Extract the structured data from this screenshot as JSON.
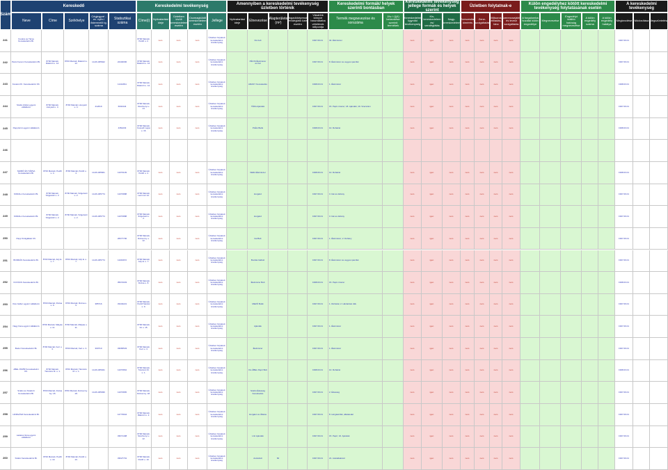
{
  "colors": {
    "navy": "#1e4272",
    "teal": "#2c7a6a",
    "darkgreen": "#1f6b45",
    "black": "#1a1a1a",
    "maroon": "#7a1c1c",
    "green": "#2c8a4a",
    "light_green": "#d9f7d2",
    "pink": "#f9d7d7",
    "white": "#ffffff"
  },
  "headers": {
    "szam": "Szám",
    "kereskedo": "Kereskedő",
    "neve": "Neve",
    "cime": "Címe",
    "szekhelye": "Székhelye",
    "cegjegyzek": "Cégjegyzé - ev. nyilv./ őstermelői ig. száma",
    "statisztikai": "Statisztikai száma",
    "kereskedelmi_tevekenyseg": "Kereskedelmi tevékenység",
    "cime2": "Címe(i)",
    "nyitvatartasi_cim": "Nyitvatartási ideje",
    "tevekenyseg_kezdete": "Üzletben kívüli kereskedelem esetén",
    "tevekenyseg_mozgo": "Csomagküldő kereskedelem esetén",
    "jellege": "Jellege",
    "amennyiben": "Amennyiben a kereskedelmi tevékenység üzletben történik",
    "nyitvatartasi_ideje": "Nyitvatartási ideje",
    "elnevezese": "Elnevezése",
    "alapterulete": "Alapterülete (m²)",
    "befogadokepesseg": "Befogadóképessége vendéglátó üzlet esetén",
    "vasarlok": "Vásárlók könyve használatba vételének időpontja",
    "formak": "Kereskedelmi formák/ helyek szerinti bontásban",
    "termek": "Termék megnevezése és sorszáma",
    "jov": "Jöv. t.§(4) bekezdése szerinti termékek",
    "jellege_formak": "Kereskedelmi tevékenység jellege formák és helyek szerint",
    "kiskereskedelem": "Kereskedelmi ügynöki tevékenység",
    "kis_keresk": "Kis-kereskedelem és/ vendéglátás",
    "nagy": "Nagy-kereskedelem",
    "uzletben": "Üzletben folytatnak-e",
    "szeszesital": "Szeszesital kimérés",
    "zene": "Zene-szolgáltatás",
    "musor": "Műsoros előadás, tánc",
    "szerencse": "Szerencsejáték és tevezi szolgáltatás",
    "kulon": "Külön engedélyhez kötött kereskedelmi tevékenység folytatásának esetén",
    "engedely1": "A forgalomba hozatal külön engedélye",
    "engedely2": "Megnevezése",
    "engedely3": "Engedélyt kiállító hatóság megnevezése",
    "engedely4": "A külön engedély száma",
    "engedely5": "A külön engedély hatálya",
    "megszunes": "A kereskedelmi tevékenység",
    "megsz1": "Megkezdése",
    "megsz2": "Módosítása",
    "megsz3": "Megszüntetése"
  },
  "rows": [
    {
      "no": "241",
      "neve": "Kovács és Társa Kereskedelmi Bt.",
      "cime": "",
      "szekhely": "",
      "ceg": "",
      "stat": "",
      "uzlet_cim": "8700 Marcali, Petőfi u. 2.",
      "jellege": "Üzletben folytatott kereskedelmi tevékenység",
      "elnev": "Kis bolt",
      "alap": "",
      "datum": "1997.09.01",
      "termek": "32. Élelmiszer",
      "vals": [
        "nem",
        "igen",
        "nem"
      ],
      "flags": [
        "nem",
        "nem",
        "nem",
        "nem"
      ],
      "end": "1997.09.01"
    },
    {
      "no": "242",
      "neve": "Pécsi Ferenc Kereskedelmi Bt.",
      "cime": "8700 Marcali, Rákóczi u. 12.",
      "szekhely": "8700 Marcali, Rákóczi u. 12.",
      "ceg": "14-06-305622",
      "stat": "22440000",
      "uzlet_cim": "8700 Marcali, Rákóczi u. 12.",
      "jellege": "Üzletben folytatott kereskedelmi tevékenység",
      "elnev": "PÉCSI Élelmiszer és Ital",
      "alap": "",
      "datum": "1997.09.01",
      "termek": "8. Élelmiszer és vegyes iparcikk",
      "vals": [
        "nem",
        "igen",
        "nem"
      ],
      "flags": [
        "nem",
        "nem",
        "nem",
        "nem"
      ],
      "end": "1997.09.01"
    },
    {
      "no": "243",
      "neve": "Kovács Kft. Kereskedelmi Kft.",
      "cime": "",
      "szekhely": "",
      "ceg": "",
      "stat": "11412811",
      "uzlet_cim": "8700 Marcali, Rákóczi u. 12.",
      "jellege": "Üzletben folytatott kereskedelmi tevékenység",
      "elnev": "ARANY Kereskedés",
      "alap": "",
      "datum": "1998.03.01",
      "termek": "1. Élelmiszer",
      "vals": [
        "nem",
        "igen",
        "nem"
      ],
      "flags": [
        "nem",
        "nem",
        "nem",
        "nem"
      ],
      "end": "1998.03.01"
    },
    {
      "no": "244",
      "neve": "Szabó Zoltán egyéni vállalkozó",
      "cime": "8700 Marcali, Hunyadi u. 4.",
      "szekhely": "8700 Marcali, Hunyadi u. 4.",
      "ceg": "412619",
      "stat": "6634444",
      "uzlet_cim": "8700 Marcali, Széchenyi u. 14.",
      "jellege": "Üzletben folytatott kereskedelmi tevékenység",
      "elnev": "TÉKA Ajándék",
      "alap": "",
      "datum": "1997.09.01",
      "termek": "15. Papír-írószer; 18. Ajándék; 19. Szerszám",
      "vals": [
        "nem",
        "igen",
        "nem"
      ],
      "flags": [
        "nem",
        "nem",
        "nem",
        "nem"
      ],
      "end": "1997.09.01"
    },
    {
      "no": "245",
      "neve": "Papp Ernő egyéni vállalkozó",
      "cime": "",
      "szekhely": "",
      "ceg": "",
      "stat": "4352233",
      "uzlet_cim": "8700 Marcali, Kossuth Lajos u. 16.",
      "jellege": "Üzletben folytatott kereskedelmi tevékenység",
      "elnev": "PLÉH Butik",
      "alap": "",
      "datum": "1998.03.01",
      "termek": "10. Ruházat",
      "vals": [
        "nem",
        "igen",
        "nem"
      ],
      "flags": [
        "nem",
        "nem",
        "nem",
        "nem"
      ],
      "end": "1998.03.01"
    },
    {
      "no": "246",
      "neve": "",
      "cime": "",
      "szekhely": "",
      "ceg": "",
      "stat": "",
      "uzlet_cim": "",
      "jellege": "",
      "elnev": "",
      "alap": "",
      "datum": "",
      "termek": "",
      "vals": [
        "",
        "",
        ""
      ],
      "flags": [
        "",
        "",
        "",
        ""
      ],
      "end": ""
    },
    {
      "no": "247",
      "neve": "SZABÓ ÉS TÁRSA Kereskedelmi Bt.",
      "cime": "8700 Marcali, Petőfi u. 4.",
      "szekhely": "8700 Marcali, Petőfi u. 4.",
      "ceg": "14-06-305661",
      "stat": "11073139",
      "uzlet_cim": "8700 Marcali, Petőfi u. 4.",
      "jellege": "Üzletben folytatott kereskedelmi tevékenység",
      "elnev": "VERA Élelmiszer",
      "alap": "",
      "datum": "1998.06.01",
      "termek": "10. Ruházat",
      "vals": [
        "nem",
        "igen",
        "nem"
      ],
      "flags": [
        "nem",
        "nem",
        "nem",
        "nem"
      ],
      "end": "1998.03.01"
    },
    {
      "no": "248",
      "neve": "KORALL Kereskedelmi Bt.",
      "cime": "8700 Marcali, Szigetvári u. 2.",
      "szekhely": "8700 Marcali, Szigetvári u. 2.",
      "ceg": "14-06-305774",
      "stat": "11073688",
      "uzlet_cim": "8700 Marcali, Lenin tér 12.",
      "jellege": "Üzletben folytatott kereskedelmi tevékenység",
      "elnev": "Horgász",
      "alap": "",
      "datum": "1997.09.01",
      "termek": "3. Ital és dohány",
      "vals": [
        "nem",
        "igen",
        "nem"
      ],
      "flags": [
        "nem",
        "nem",
        "nem",
        "nem"
      ],
      "end": "1997.09.01"
    },
    {
      "no": "249",
      "neve": "KORALL Kereskedelmi Bt.",
      "cime": "8700 Marcali, Szigetvári u. 2.",
      "szekhely": "8700 Marcali, Szigetvári u. 2.",
      "ceg": "14-06-305774",
      "stat": "11073688",
      "uzlet_cim": "8700 Marcali, Szigetvári u. 2.",
      "jellege": "Üzletben folytatott kereskedelmi tevékenység",
      "elnev": "Horgász",
      "alap": "",
      "datum": "1997.09.01",
      "termek": "3. Ital és dohány",
      "vals": [
        "nem",
        "igen",
        "nem"
      ],
      "flags": [
        "nem",
        "nem",
        "nem",
        "nem"
      ],
      "end": "1997.09.01"
    },
    {
      "no": "250",
      "neve": "Papp Szolgáltató Kft.",
      "cime": "",
      "szekhely": "",
      "ceg": "",
      "stat": "26677700",
      "uzlet_cim": "8700 Marcali, Dózsa Gy. u. 12.",
      "jellege": "Üzletben folytatott kereskedelmi tevékenység",
      "elnev": "Ital Bolt",
      "alap": "",
      "datum": "1997.09.01",
      "termek": "1. Élelmiszer; 2. Dohány",
      "vals": [
        "nem",
        "igen",
        "nem"
      ],
      "flags": [
        "nem",
        "nem",
        "nem",
        "nem"
      ],
      "end": "1997.09.01"
    },
    {
      "no": "251",
      "neve": "BORDÁS Kereskedelmi Bt.",
      "cime": "8700 Marcali, Ady E. u. 7.",
      "szekhely": "8700 Marcali, Ady E. u. 7.",
      "ceg": "14-06-305774",
      "stat": "11043972",
      "uzlet_cim": "8700 Marcali, Ady E. u. 7.",
      "jellege": "Üzletben folytatott kereskedelmi tevékenység",
      "elnev": "Bordás Italbolt",
      "alap": "",
      "datum": "1997.09.01",
      "termek": "8. Élelmiszer és vegyes iparcikk",
      "vals": [
        "nem",
        "igen",
        "nem"
      ],
      "flags": [
        "nem",
        "nem",
        "nem",
        "nem"
      ],
      "end": "1997.09.01"
    },
    {
      "no": "252",
      "neve": "KOVÁCS Kereskedelmi Bt.",
      "cime": "",
      "szekhely": "",
      "ceg": "",
      "stat": "35672033",
      "uzlet_cim": "8700 Marcali, Dózsa u. 8.",
      "jellege": "Üzletben folytatott kereskedelmi tevékenység",
      "elnev": "Élelmiszer Bolt",
      "alap": "",
      "datum": "1998.03.01",
      "termek": "15. Papír-írószer",
      "vals": [
        "nem",
        "igen",
        "nem"
      ],
      "flags": [
        "nem",
        "nem",
        "nem",
        "nem"
      ],
      "end": "1998.03.01"
    },
    {
      "no": "253",
      "neve": "Kiss Gábor egyéni vállalkozó",
      "cime": "8700 Marcali, Rózsa u. 9.",
      "szekhely": "8700 Marcali, Rózsa u. 9.",
      "ceg": "385716",
      "stat": "33443221",
      "uzlet_cim": "8700 Marcali, Petőfi Sándor u. 9.",
      "jellege": "Üzletben folytatott kereskedelmi tevékenység",
      "elnev": "MEZŐ Butik",
      "alap": "",
      "datum": "1997.09.01",
      "termek": "1. Ruházat; 2. Háztartási cikk",
      "vals": [
        "nem",
        "igen",
        "nem"
      ],
      "flags": [
        "nem",
        "nem",
        "nem",
        "nem"
      ],
      "end": "1997.09.01"
    },
    {
      "no": "254",
      "neve": "Nagy Ilona egyéni vállalkozó",
      "cime": "8700 Marcali, Mátyás u. 11.",
      "szekhely": "8700 Marcali, Mátyás u. 11.",
      "ceg": "",
      "stat": "",
      "uzlet_cim": "8700 Marcali, Fő u. 15.",
      "jellege": "Üzletben folytatott kereskedelmi tevékenység",
      "elnev": "Ajándék",
      "alap": "",
      "datum": "1997.09.01",
      "termek": "1. Élelmiszer",
      "vals": [
        "nem",
        "igen",
        "nem"
      ],
      "flags": [
        "nem",
        "nem",
        "nem",
        "nem"
      ],
      "end": "1997.09.01"
    },
    {
      "no": "255",
      "neve": "Bodor Kereskedelmi Bt.",
      "cime": "8700 Marcali, Kert u. 3.",
      "szekhely": "8700 Marcali, Kert u. 3.",
      "ceg": "300710",
      "stat": "33665533",
      "uzlet_cim": "8700 Marcali, Kert u. 3.",
      "jellege": "Üzletben folytatott kereskedelmi tevékenység",
      "elnev": "Élelmiszer",
      "alap": "",
      "datum": "1997.09.01",
      "termek": "1. Élelmiszer",
      "vals": [
        "nem",
        "igen",
        "nem"
      ],
      "flags": [
        "nem",
        "nem",
        "nem",
        "nem"
      ],
      "end": "1997.09.01"
    },
    {
      "no": "256",
      "neve": "ABEL PAPÍR Kereskedelmi Kft.",
      "cime": "8700 Marcali, Táncsics M. u. 1.",
      "szekhely": "8700 Marcali, Táncsics M. u. 1.",
      "ceg": "14-09-305941",
      "stat": "11073664",
      "uzlet_cim": "8700 Marcali, Táncsics M. u. 1.",
      "jellege": "Üzletben folytatott kereskedelmi tevékenység",
      "elnev": "Kis ÁBEL Papír Bolt",
      "alap": "",
      "datum": "1998.03.01",
      "termek": "10. Ruházat",
      "vals": [
        "nem",
        "igen",
        "nem"
      ],
      "flags": [
        "nem",
        "nem",
        "nem",
        "nem"
      ],
      "end": "1998.03.01"
    },
    {
      "no": "257",
      "neve": "Szabó és Szalóczi Kereskedelmi Bt.",
      "cime": "8700 Marcali, Dózsa Gy. 18.",
      "szekhely": "8700 Marcali, Dózsa Gy. 18.",
      "ceg": "14-06-305936",
      "stat": "11073665",
      "uzlet_cim": "8700 Marcali, Dózsa Gy. 18.",
      "jellege": "Üzletben folytatott kereskedelmi tevékenység",
      "elnev": "Szabó Édesség Kereskedés",
      "alap": "",
      "datum": "1997.09.01",
      "termek": "2. Édesség",
      "vals": [
        "nem",
        "igen",
        "nem"
      ],
      "flags": [
        "nem",
        "nem",
        "nem",
        "nem"
      ],
      "end": "1997.09.01"
    },
    {
      "no": "258",
      "neve": "HORGÁSZ Kereskedelmi Bt.",
      "cime": "",
      "szekhely": "",
      "ceg": "",
      "stat": "12773944",
      "uzlet_cim": "8700 Marcali, Rákóczi u. 2.",
      "jellege": "Üzletben folytatott kereskedelmi tevékenység",
      "elnev": "Horgász és Állatos",
      "alap": "",
      "datum": "1997.09.01",
      "termek": "8. Horgászcikk, állateledel",
      "vals": [
        "nem",
        "igen",
        "nem"
      ],
      "flags": [
        "nem",
        "nem",
        "nem",
        "nem"
      ],
      "end": "1997.09.01"
    },
    {
      "no": "259",
      "neve": "Lakatos Ilona egyéni vállalkozó",
      "cime": "",
      "szekhely": "",
      "ceg": "",
      "stat": "33671408",
      "uzlet_cim": "8700 Marcali, Széchenyi u. 12.",
      "jellege": "Üzletben folytatott kereskedelmi tevékenység",
      "elnev": "LILI Ajándék",
      "alap": "",
      "datum": "1997.09.01",
      "termek": "15. Papír; 16. Ajándék",
      "vals": [
        "nem",
        "igen",
        "nem"
      ],
      "flags": [
        "nem",
        "nem",
        "nem",
        "nem"
      ],
      "end": "1997.09.01"
    },
    {
      "no": "260",
      "neve": "Szabó Kereskedelmi Bt.",
      "cime": "8700 Marcali, Petőfi u. 10.",
      "szekhely": "8700 Marcali, Petőfi u. 10.",
      "ceg": "",
      "stat": "33627701",
      "uzlet_cim": "8700 Marcali, Petőfi u. 10.",
      "jellege": "Üzletben folytatott kereskedelmi tevékenység",
      "elnev": "Autósbolt",
      "alap": "60",
      "datum": "1997.09.01",
      "termek": "21. Autóalkatrész",
      "vals": [
        "nem",
        "igen",
        "nem"
      ],
      "flags": [
        "nem",
        "nem",
        "nem",
        "nem"
      ],
      "end": "1997.09.01"
    }
  ]
}
